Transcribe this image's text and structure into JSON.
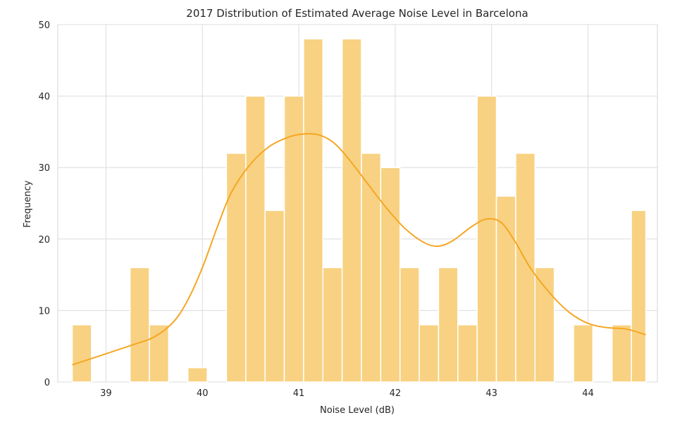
{
  "chart_data": {
    "type": "bar",
    "title": "2017 Distribution of Estimated Average Noise Level in Barcelona",
    "xlabel": "Noise Level (dB)",
    "ylabel": "Frequency",
    "xlim": [
      38.5,
      44.72
    ],
    "ylim": [
      0,
      50
    ],
    "xticks": [
      39,
      40,
      41,
      42,
      43,
      44
    ],
    "yticks": [
      0,
      10,
      20,
      30,
      40,
      50
    ],
    "grid": true,
    "bin_edges": [
      38.65,
      38.85,
      39.05,
      39.25,
      39.45,
      39.65,
      39.85,
      40.05,
      40.25,
      40.45,
      40.65,
      40.85,
      41.05,
      41.25,
      41.45,
      41.65,
      41.85,
      42.05,
      42.25,
      42.45,
      42.65,
      42.85,
      43.05,
      43.25,
      43.45,
      43.65,
      43.85,
      44.05,
      44.25,
      44.45,
      44.6
    ],
    "counts": [
      8,
      0,
      0,
      16,
      8,
      0,
      2,
      0,
      32,
      40,
      24,
      40,
      48,
      16,
      48,
      32,
      30,
      16,
      8,
      16,
      8,
      40,
      26,
      32,
      16,
      0,
      8,
      0,
      8,
      24
    ],
    "bar_color": "#f8d282",
    "kde": {
      "x": [
        38.65,
        38.9,
        39.1,
        39.3,
        39.5,
        39.7,
        39.85,
        40.0,
        40.15,
        40.3,
        40.5,
        40.7,
        40.9,
        41.05,
        41.2,
        41.35,
        41.5,
        41.7,
        41.9,
        42.1,
        42.3,
        42.45,
        42.6,
        42.8,
        42.95,
        43.1,
        43.25,
        43.4,
        43.6,
        43.8,
        44.0,
        44.2,
        44.4,
        44.6
      ],
      "y": [
        2.4,
        3.5,
        4.4,
        5.3,
        6.3,
        8.4,
        11.5,
        16.0,
        21.5,
        26.5,
        30.5,
        33.0,
        34.3,
        34.7,
        34.6,
        33.6,
        31.5,
        28.0,
        24.5,
        21.5,
        19.5,
        19.0,
        19.8,
        21.8,
        22.8,
        22.3,
        19.5,
        16.0,
        12.5,
        9.8,
        8.2,
        7.6,
        7.4,
        6.6
      ],
      "color": "#f5a623"
    }
  }
}
